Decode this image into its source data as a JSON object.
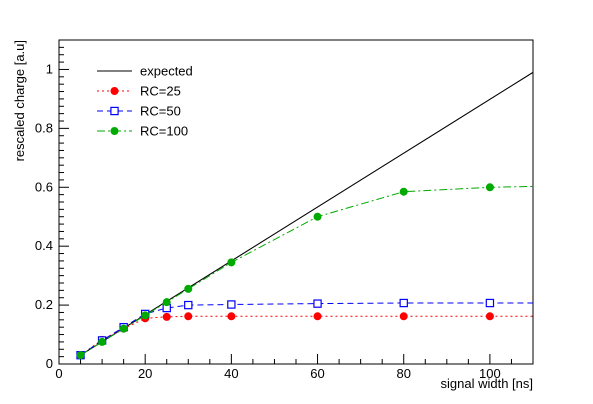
{
  "chart_data": {
    "type": "line",
    "title": "",
    "xlabel": "signal width [ns]",
    "ylabel": "rescaled charge [a.u]",
    "xlim": [
      0,
      110
    ],
    "ylim": [
      0,
      1.1
    ],
    "xticks": [
      0,
      20,
      40,
      60,
      80,
      100
    ],
    "yticks": [
      0,
      0.2,
      0.4,
      0.6,
      0.8,
      1
    ],
    "ytick_labels": [
      "0",
      "0.2",
      "0.4",
      "0.6",
      "0.8",
      "1"
    ],
    "grid": false,
    "legend": "top-left",
    "series": [
      {
        "name": "expected",
        "style": "solid",
        "marker": "none",
        "color": "#000000",
        "x": [
          5,
          110
        ],
        "y": [
          0.03,
          0.99
        ]
      },
      {
        "name": "RC=25",
        "style": "dotted",
        "marker": "filled-circle",
        "color": "#ff0000",
        "x": [
          5,
          10,
          15,
          20,
          25,
          30,
          40,
          60,
          80,
          100,
          110
        ],
        "y": [
          0.03,
          0.082,
          0.12,
          0.155,
          0.16,
          0.162,
          0.162,
          0.162,
          0.162,
          0.162,
          0.162
        ]
      },
      {
        "name": "RC=50",
        "style": "dashed",
        "marker": "open-square",
        "color": "#0000ff",
        "x": [
          5,
          10,
          15,
          20,
          25,
          30,
          40,
          60,
          80,
          100,
          110
        ],
        "y": [
          0.03,
          0.08,
          0.125,
          0.17,
          0.19,
          0.2,
          0.202,
          0.205,
          0.207,
          0.207,
          0.207
        ]
      },
      {
        "name": "RC=100",
        "style": "dash-dot",
        "marker": "filled-circle",
        "color": "#00aa00",
        "x": [
          5,
          10,
          15,
          20,
          25,
          30,
          40,
          60,
          80,
          100,
          110
        ],
        "y": [
          0.03,
          0.075,
          0.12,
          0.165,
          0.21,
          0.255,
          0.345,
          0.5,
          0.585,
          0.6,
          0.603
        ]
      }
    ]
  }
}
